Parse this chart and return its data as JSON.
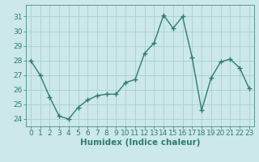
{
  "x": [
    0,
    1,
    2,
    3,
    4,
    5,
    6,
    7,
    8,
    9,
    10,
    11,
    12,
    13,
    14,
    15,
    16,
    17,
    18,
    19,
    20,
    21,
    22,
    23
  ],
  "y": [
    28,
    27,
    25.5,
    24.2,
    24.0,
    24.8,
    25.3,
    25.6,
    25.7,
    25.7,
    26.5,
    26.7,
    28.5,
    29.2,
    31.1,
    30.2,
    31.0,
    28.2,
    24.6,
    26.8,
    27.9,
    28.1,
    27.5,
    26.1
  ],
  "line_color": "#2e7d6e",
  "marker": "+",
  "marker_size": 4,
  "bg_color": "#cce8e8",
  "grid_color": "#aad0d0",
  "xlabel": "Humidex (Indice chaleur)",
  "ylim": [
    23.5,
    31.8
  ],
  "xlim": [
    -0.5,
    23.5
  ],
  "yticks": [
    24,
    25,
    26,
    27,
    28,
    29,
    30,
    31
  ],
  "xticks": [
    0,
    1,
    2,
    3,
    4,
    5,
    6,
    7,
    8,
    9,
    10,
    11,
    12,
    13,
    14,
    15,
    16,
    17,
    18,
    19,
    20,
    21,
    22,
    23
  ],
  "tick_color": "#2e7d6e",
  "tick_fontsize": 6.5,
  "xlabel_fontsize": 7.5
}
